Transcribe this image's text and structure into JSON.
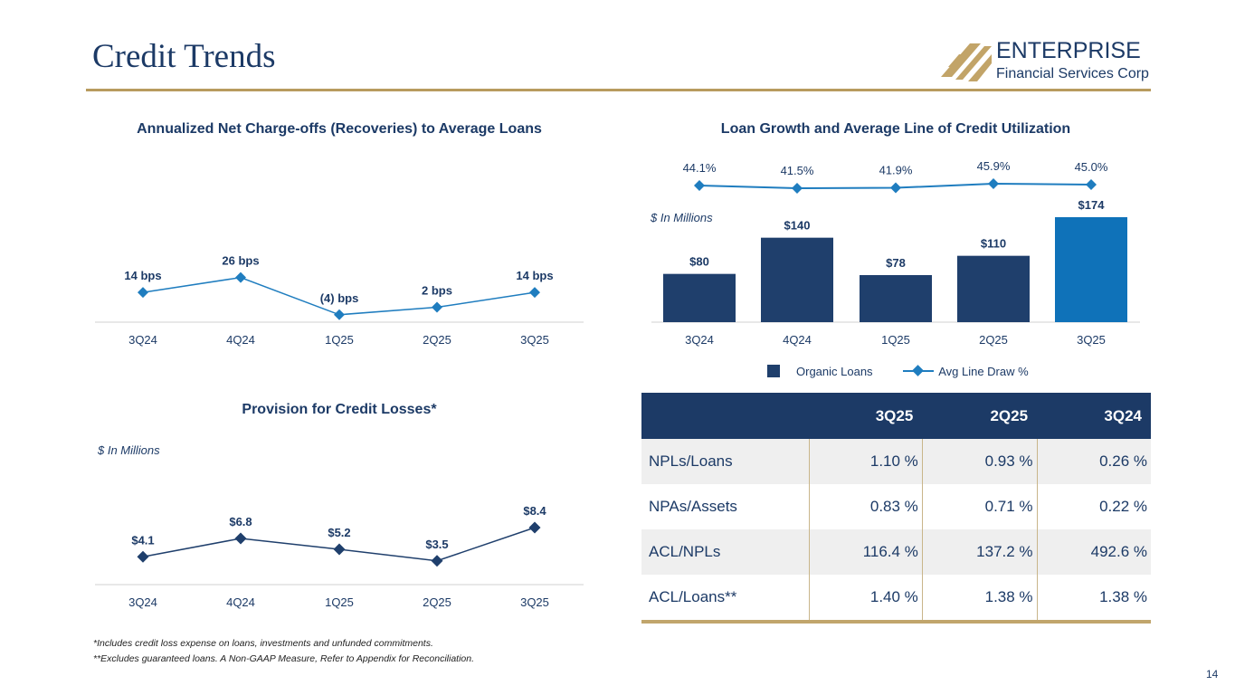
{
  "header": {
    "title": "Credit Trends",
    "logo_name": "ENTERPRISE",
    "logo_subtitle": "Financial Services Corp"
  },
  "colors": {
    "navy": "#1c3a66",
    "gold": "#b89b5e",
    "bar_dark": "#1f3f6c",
    "bar_highlight": "#0f72b9",
    "line_blue": "#1f7dbf"
  },
  "chart_data": [
    {
      "type": "line",
      "title": "Annualized Net Charge-offs (Recoveries) to Average Loans",
      "categories": [
        "3Q24",
        "4Q24",
        "1Q25",
        "2Q25",
        "3Q25"
      ],
      "values": [
        14,
        26,
        -4,
        2,
        14
      ],
      "labels": [
        "14 bps",
        "26 bps",
        "(4) bps",
        "2 bps",
        "14 bps"
      ],
      "units": "bps",
      "ylim": [
        -10,
        60
      ]
    },
    {
      "type": "bar",
      "title": "Loan Growth and Average Line of Credit Utilization",
      "units_label": "$ In Millions",
      "categories": [
        "3Q24",
        "4Q24",
        "1Q25",
        "2Q25",
        "3Q25"
      ],
      "series": [
        {
          "name": "Organic Loans",
          "type": "bar",
          "values": [
            80,
            140,
            78,
            110,
            174
          ],
          "labels": [
            "$80",
            "$140",
            "$78",
            "$110",
            "$174"
          ]
        },
        {
          "name": "Avg Line Draw %",
          "type": "line",
          "values": [
            44.1,
            41.5,
            41.9,
            45.9,
            45.0
          ],
          "labels": [
            "44.1%",
            "41.5%",
            "41.9%",
            "45.9%",
            "45.0%"
          ]
        }
      ],
      "ylim": [
        0,
        180
      ],
      "legend": "bottom"
    },
    {
      "type": "line",
      "title": "Provision for Credit Losses*",
      "units_label": "$ In Millions",
      "categories": [
        "3Q24",
        "4Q24",
        "1Q25",
        "2Q25",
        "3Q25"
      ],
      "values": [
        4.1,
        6.8,
        5.2,
        3.5,
        8.4
      ],
      "labels": [
        "$4.1",
        "$6.8",
        "$5.2",
        "$3.5",
        "$8.4"
      ],
      "ylim": [
        0,
        16
      ]
    },
    {
      "type": "table",
      "columns": [
        "",
        "3Q25",
        "2Q25",
        "3Q24"
      ],
      "rows": [
        {
          "label": "NPLs/Loans",
          "values": [
            "1.10 %",
            "0.93 %",
            "0.26 %"
          ]
        },
        {
          "label": "NPAs/Assets",
          "values": [
            "0.83 %",
            "0.71 %",
            "0.22 %"
          ]
        },
        {
          "label": "ACL/NPLs",
          "values": [
            "116.4 %",
            "137.2 %",
            "492.6 %"
          ]
        },
        {
          "label": "ACL/Loans**",
          "values": [
            "1.40 %",
            "1.38 %",
            "1.38 %"
          ]
        }
      ]
    }
  ],
  "footnotes": [
    "*Includes credit loss expense on loans, investments and unfunded commitments.",
    "**Excludes guaranteed loans. A Non-GAAP Measure, Refer to Appendix for Reconciliation."
  ],
  "page_number": "14"
}
